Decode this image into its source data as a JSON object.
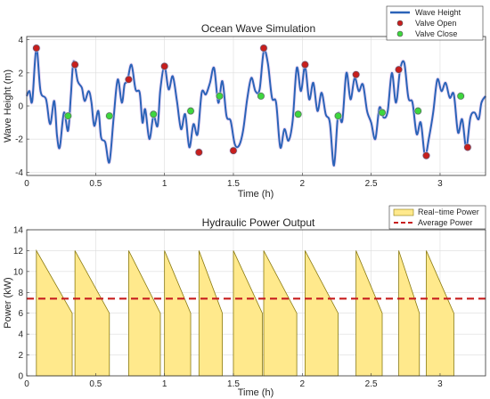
{
  "chart_data": [
    {
      "type": "line",
      "title": "Ocean Wave Simulation",
      "xlabel": "Time (h)",
      "ylabel": "Wave Height (m)",
      "xlim": [
        0,
        3.33
      ],
      "ylim": [
        -4.2,
        4.2
      ],
      "xticks": [
        "0",
        "0.5",
        "1",
        "1.5",
        "2",
        "2.5",
        "3"
      ],
      "yticks": [
        "4",
        "2",
        "0",
        "-2",
        "-4"
      ],
      "grid": true,
      "legend_position": "top-right",
      "legend": [
        "Wave Height",
        "Valve Open",
        "Valve Close"
      ],
      "colors": {
        "wave": "#2b63b8",
        "open": "#c81e1e",
        "close": "#3ed63e"
      },
      "wave_peaks": [
        [
          0.0,
          0.6
        ],
        [
          0.02,
          0.9
        ],
        [
          0.04,
          0.3
        ],
        [
          0.07,
          3.5
        ],
        [
          0.1,
          0.9
        ],
        [
          0.14,
          0.4
        ],
        [
          0.17,
          -1.1
        ],
        [
          0.2,
          0.3
        ],
        [
          0.22,
          -1.8
        ],
        [
          0.24,
          -2.5
        ],
        [
          0.27,
          -0.4
        ],
        [
          0.3,
          -1.5
        ],
        [
          0.32,
          0.6
        ],
        [
          0.34,
          2.7
        ],
        [
          0.37,
          1.5
        ],
        [
          0.4,
          1.1
        ],
        [
          0.42,
          0.3
        ],
        [
          0.45,
          0.9
        ],
        [
          0.47,
          0.2
        ],
        [
          0.49,
          -1.2
        ],
        [
          0.52,
          -0.3
        ],
        [
          0.54,
          -1.9
        ],
        [
          0.57,
          -2.2
        ],
        [
          0.6,
          -3.4
        ],
        [
          0.63,
          -0.8
        ],
        [
          0.66,
          1.6
        ],
        [
          0.69,
          0.2
        ],
        [
          0.71,
          1.3
        ],
        [
          0.73,
          1.5
        ],
        [
          0.76,
          2.5
        ],
        [
          0.79,
          1.0
        ],
        [
          0.82,
          0.8
        ],
        [
          0.84,
          -1.0
        ],
        [
          0.86,
          -0.2
        ],
        [
          0.89,
          -2.0
        ],
        [
          0.92,
          -0.6
        ],
        [
          0.95,
          -1.2
        ],
        [
          0.97,
          1.0
        ],
        [
          1.0,
          2.4
        ],
        [
          1.03,
          1.0
        ],
        [
          1.06,
          1.8
        ],
        [
          1.09,
          0.3
        ],
        [
          1.12,
          -1.4
        ],
        [
          1.15,
          -0.5
        ],
        [
          1.18,
          -2.5
        ],
        [
          1.21,
          -1.1
        ],
        [
          1.24,
          -1.7
        ],
        [
          1.27,
          0.8
        ],
        [
          1.3,
          0.7
        ],
        [
          1.33,
          1.4
        ],
        [
          1.36,
          2.3
        ],
        [
          1.39,
          0.2
        ],
        [
          1.42,
          1.5
        ],
        [
          1.45,
          -0.6
        ],
        [
          1.48,
          -0.9
        ],
        [
          1.51,
          -2.3
        ],
        [
          1.54,
          -2.4
        ],
        [
          1.57,
          -1.5
        ],
        [
          1.6,
          0.4
        ],
        [
          1.63,
          1.7
        ],
        [
          1.66,
          0.9
        ],
        [
          1.69,
          1.0
        ],
        [
          1.72,
          3.3
        ],
        [
          1.75,
          2.6
        ],
        [
          1.78,
          0.5
        ],
        [
          1.81,
          0.2
        ],
        [
          1.84,
          -2.5
        ],
        [
          1.87,
          -1.4
        ],
        [
          1.9,
          -2.1
        ],
        [
          1.93,
          -0.9
        ],
        [
          1.96,
          2.3
        ],
        [
          1.99,
          0.9
        ],
        [
          2.02,
          2.4
        ],
        [
          2.05,
          0.4
        ],
        [
          2.08,
          1.4
        ],
        [
          2.11,
          -0.3
        ],
        [
          2.14,
          0.8
        ],
        [
          2.17,
          -0.5
        ],
        [
          2.2,
          -1.0
        ],
        [
          2.23,
          -3.6
        ],
        [
          2.26,
          -0.5
        ],
        [
          2.29,
          -0.9
        ],
        [
          2.32,
          2.0
        ],
        [
          2.35,
          0.4
        ],
        [
          2.38,
          1.7
        ],
        [
          2.41,
          0.9
        ],
        [
          2.44,
          1.3
        ],
        [
          2.47,
          -0.3
        ],
        [
          2.5,
          -1.0
        ],
        [
          2.53,
          -2.0
        ],
        [
          2.56,
          -0.1
        ],
        [
          2.59,
          -0.7
        ],
        [
          2.62,
          -0.3
        ],
        [
          2.65,
          2.0
        ],
        [
          2.68,
          0.2
        ],
        [
          2.71,
          2.2
        ],
        [
          2.74,
          2.6
        ],
        [
          2.77,
          0.5
        ],
        [
          2.8,
          0.2
        ],
        [
          2.83,
          -1.7
        ],
        [
          2.86,
          -1.0
        ],
        [
          2.89,
          -3.0
        ],
        [
          2.92,
          -1.9
        ],
        [
          2.95,
          -0.4
        ],
        [
          2.98,
          1.6
        ],
        [
          3.01,
          0.9
        ],
        [
          3.04,
          1.4
        ],
        [
          3.07,
          0.5
        ],
        [
          3.1,
          0.7
        ],
        [
          3.13,
          -1.6
        ],
        [
          3.16,
          -0.8
        ],
        [
          3.19,
          -2.5
        ],
        [
          3.22,
          -0.7
        ],
        [
          3.25,
          -0.4
        ],
        [
          3.28,
          -0.8
        ],
        [
          3.3,
          0.2
        ],
        [
          3.33,
          0.6
        ]
      ],
      "valve_open": [
        [
          0.07,
          3.5
        ],
        [
          0.35,
          2.5
        ],
        [
          0.74,
          1.6
        ],
        [
          1.0,
          2.4
        ],
        [
          1.25,
          -2.8
        ],
        [
          1.5,
          -2.7
        ],
        [
          1.72,
          3.5
        ],
        [
          2.02,
          2.5
        ],
        [
          2.39,
          1.9
        ],
        [
          2.7,
          2.2
        ],
        [
          2.9,
          -3.0
        ],
        [
          3.2,
          -2.5
        ]
      ],
      "valve_close": [
        [
          0.3,
          -0.6
        ],
        [
          0.6,
          -0.6
        ],
        [
          0.92,
          -0.5
        ],
        [
          1.19,
          -0.3
        ],
        [
          1.4,
          0.6
        ],
        [
          1.7,
          0.6
        ],
        [
          1.97,
          -0.5
        ],
        [
          2.26,
          -0.6
        ],
        [
          2.58,
          -0.4
        ],
        [
          2.84,
          -0.3
        ],
        [
          3.15,
          0.6
        ]
      ]
    },
    {
      "type": "area",
      "title": "Hydraulic Power Output",
      "xlabel": "Time (h)",
      "ylabel": "Power (kW)",
      "xlim": [
        0,
        3.33
      ],
      "ylim": [
        0,
        14
      ],
      "xticks": [
        "0",
        "0.5",
        "1",
        "1.5",
        "2",
        "2.5",
        "3"
      ],
      "yticks": [
        "14",
        "12",
        "10",
        "8",
        "6",
        "4",
        "2",
        "0"
      ],
      "grid": true,
      "legend_position": "top-right",
      "legend": [
        "Real−time Power",
        "Average Power"
      ],
      "colors": {
        "fill": "#ffe98c",
        "edge": "#8a7a10",
        "average": "#c81e1e"
      },
      "average_power": 7.4,
      "pulses": [
        [
          0.07,
          0.33
        ],
        [
          0.35,
          0.6
        ],
        [
          0.74,
          0.97
        ],
        [
          1.0,
          1.19
        ],
        [
          1.25,
          1.42
        ],
        [
          1.5,
          1.71
        ],
        [
          1.72,
          1.96
        ],
        [
          2.02,
          2.26
        ],
        [
          2.39,
          2.58
        ],
        [
          2.7,
          2.85
        ],
        [
          2.9,
          3.1
        ]
      ],
      "pulse_peak": 12,
      "pulse_end": 6
    }
  ]
}
